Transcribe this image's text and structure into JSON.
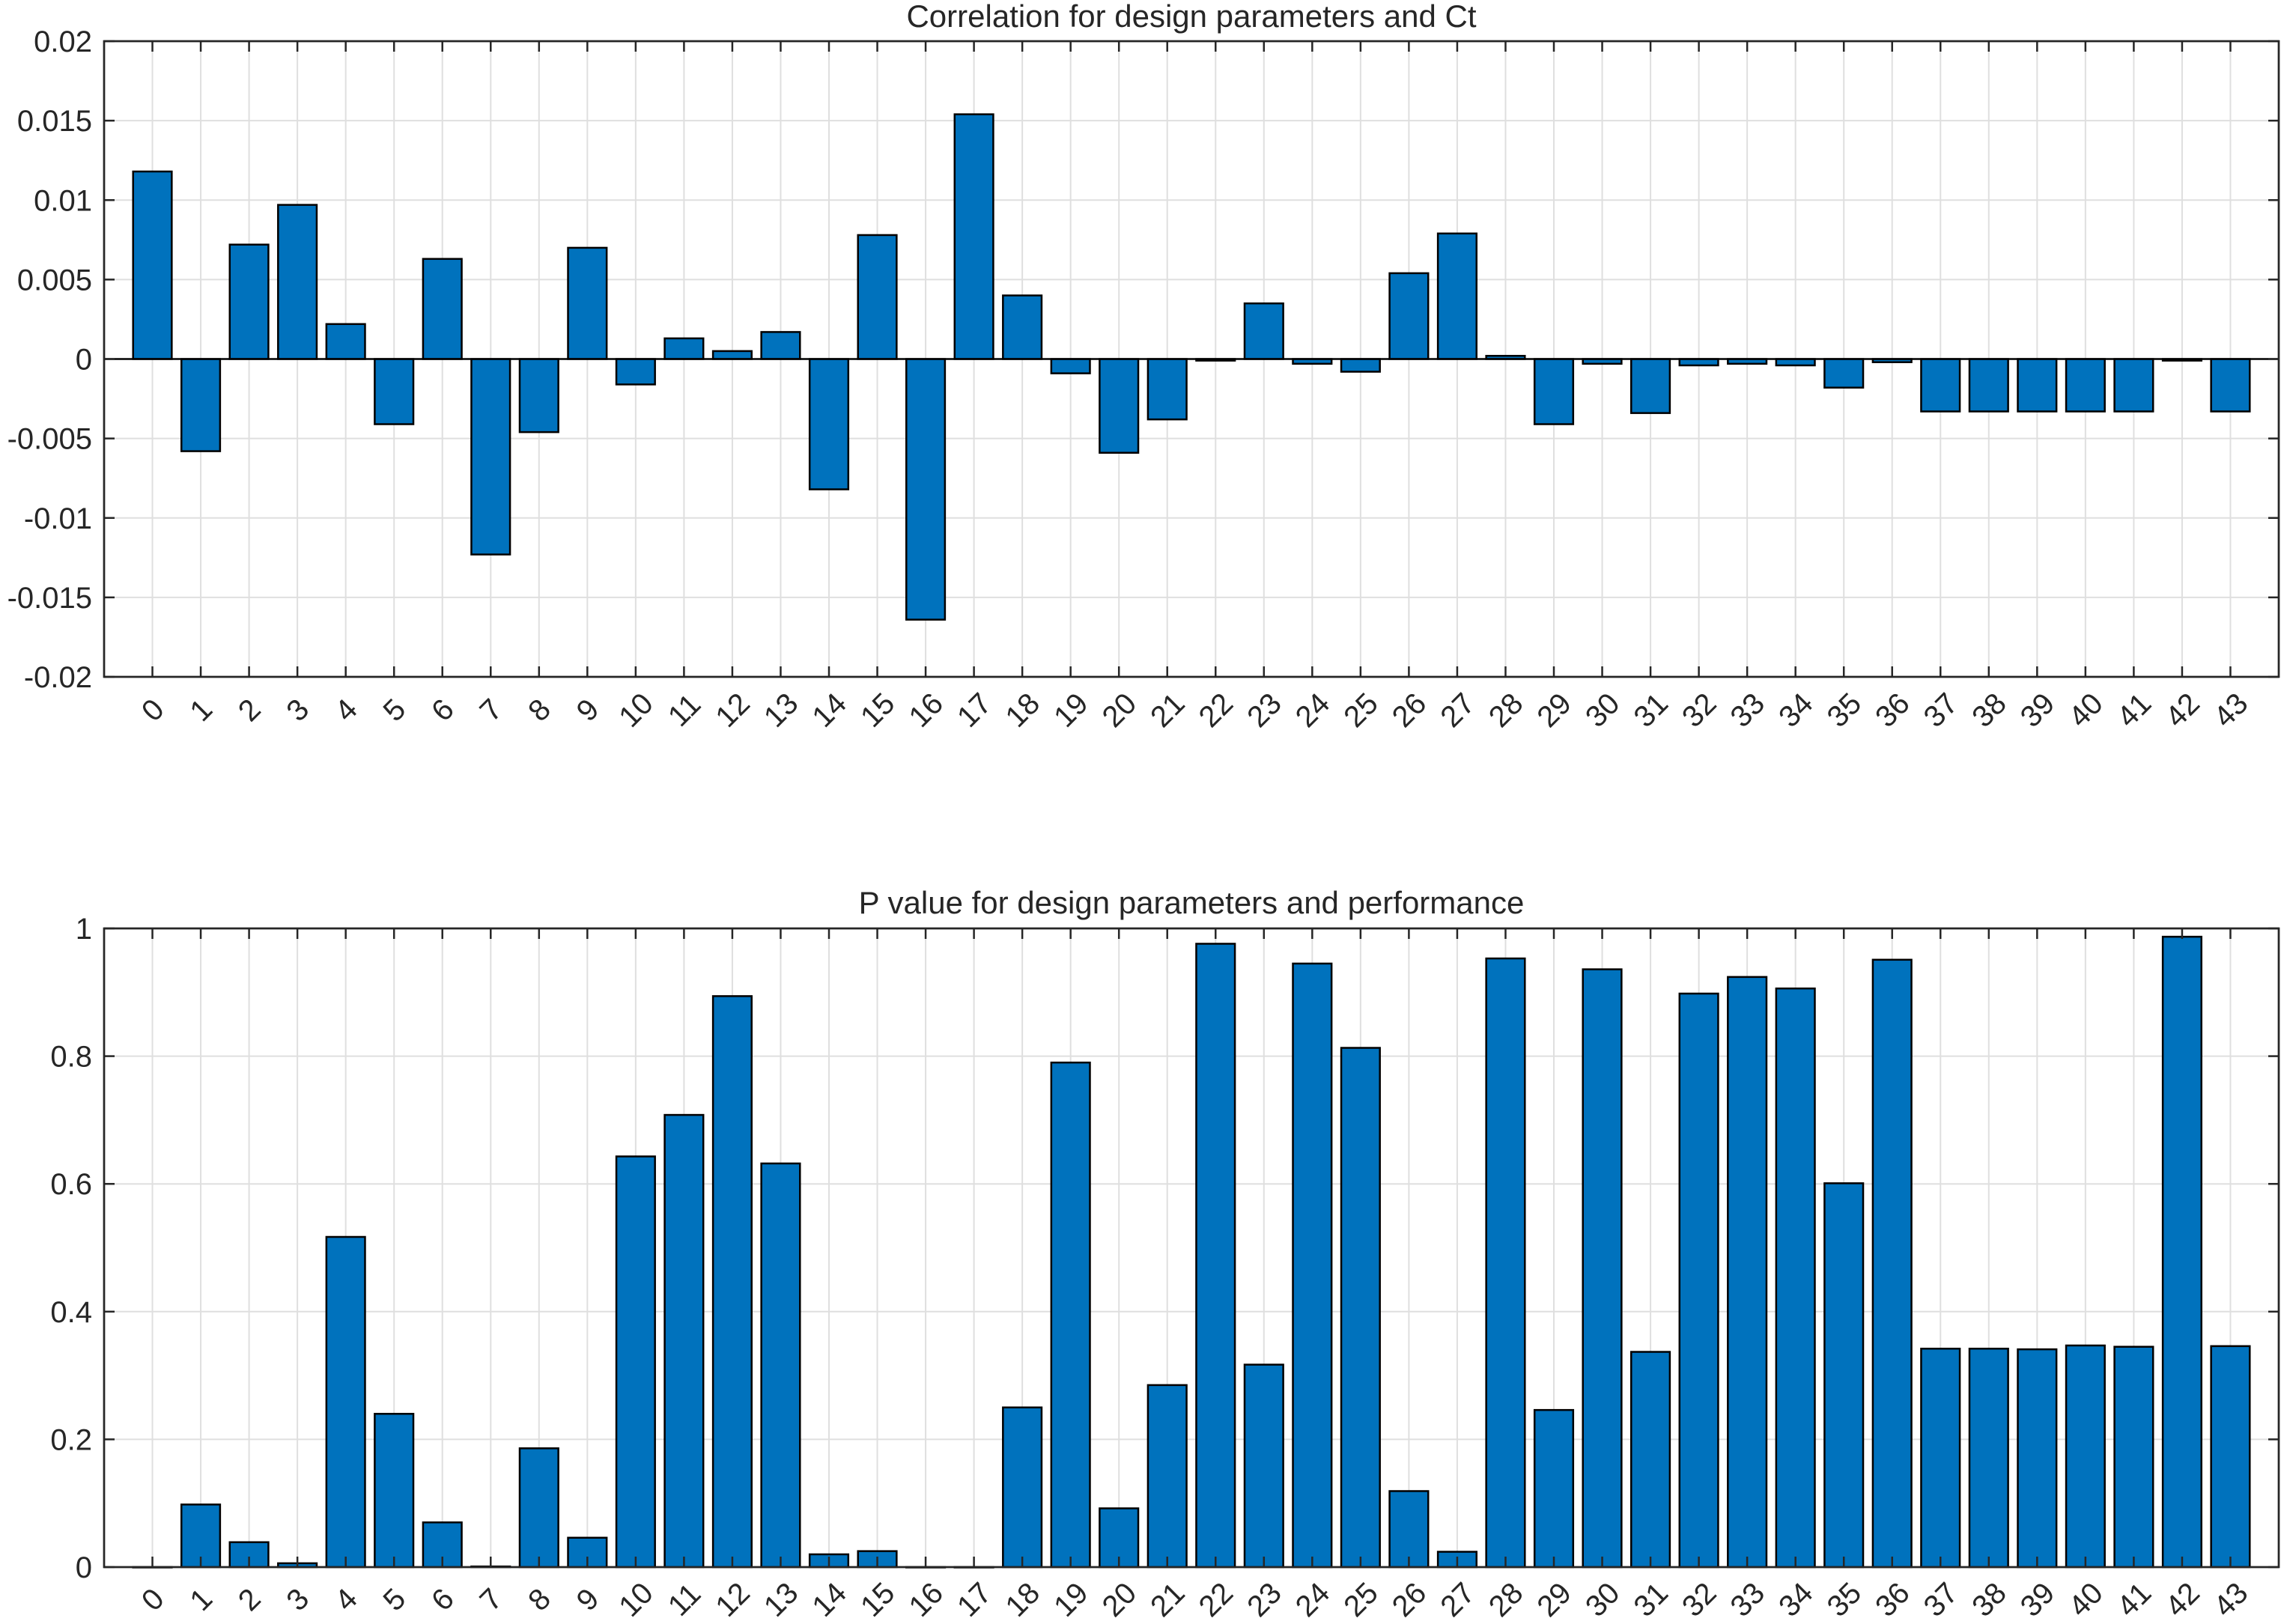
{
  "chart_data": [
    {
      "type": "bar",
      "title": "Correlation for design parameters and Ct",
      "xlabel": "",
      "ylabel": "",
      "ylim": [
        -0.02,
        0.02
      ],
      "yticks": [
        -0.02,
        -0.015,
        -0.01,
        -0.005,
        0,
        0.005,
        0.01,
        0.015,
        0.02
      ],
      "ytick_labels": [
        "-0.02",
        "-0.015",
        "-0.01",
        "-0.005",
        "0",
        "0.005",
        "0.01",
        "0.015",
        "0.02"
      ],
      "grid": true,
      "bar_color": "#0072BD",
      "categories": [
        "0",
        "1",
        "2",
        "3",
        "4",
        "5",
        "6",
        "7",
        "8",
        "9",
        "10",
        "11",
        "12",
        "13",
        "14",
        "15",
        "16",
        "17",
        "18",
        "19",
        "20",
        "21",
        "22",
        "23",
        "24",
        "25",
        "26",
        "27",
        "28",
        "29",
        "30",
        "31",
        "32",
        "33",
        "34",
        "35",
        "36",
        "37",
        "38",
        "39",
        "40",
        "41",
        "42",
        "43"
      ],
      "values": [
        0.0118,
        -0.0058,
        0.0072,
        0.0097,
        0.0022,
        -0.0041,
        0.0063,
        -0.0123,
        -0.0046,
        0.007,
        -0.0016,
        0.0013,
        0.0005,
        0.0017,
        -0.0082,
        0.0078,
        -0.0164,
        0.0154,
        0.004,
        -0.0009,
        -0.0059,
        -0.0038,
        -0.0001,
        0.0035,
        -0.0003,
        -0.0008,
        0.0054,
        0.0079,
        0.0002,
        -0.0041,
        -0.0003,
        -0.0034,
        -0.0004,
        -0.0003,
        -0.0004,
        -0.0018,
        -0.0002,
        -0.0033,
        -0.0033,
        -0.0033,
        -0.0033,
        -0.0033,
        -0.0001,
        -0.0033
      ]
    },
    {
      "type": "bar",
      "title": "P value for design parameters and performance",
      "xlabel": "",
      "ylabel": "",
      "ylim": [
        0,
        1
      ],
      "yticks": [
        0,
        0.2,
        0.4,
        0.6,
        0.8,
        1
      ],
      "ytick_labels": [
        "0",
        "0.2",
        "0.4",
        "0.6",
        "0.8",
        "1"
      ],
      "grid": true,
      "bar_color": "#0072BD",
      "categories": [
        "0",
        "1",
        "2",
        "3",
        "4",
        "5",
        "6",
        "7",
        "8",
        "9",
        "10",
        "11",
        "12",
        "13",
        "14",
        "15",
        "16",
        "17",
        "18",
        "19",
        "20",
        "21",
        "22",
        "23",
        "24",
        "25",
        "26",
        "27",
        "28",
        "29",
        "30",
        "31",
        "32",
        "33",
        "34",
        "35",
        "36",
        "37",
        "38",
        "39",
        "40",
        "41",
        "42",
        "43"
      ],
      "values": [
        0.0,
        0.098,
        0.039,
        0.006,
        0.517,
        0.24,
        0.07,
        0.001,
        0.186,
        0.046,
        0.643,
        0.708,
        0.894,
        0.632,
        0.02,
        0.025,
        0.0,
        0.0,
        0.25,
        0.79,
        0.092,
        0.285,
        0.976,
        0.317,
        0.945,
        0.813,
        0.119,
        0.024,
        0.953,
        0.246,
        0.936,
        0.337,
        0.898,
        0.924,
        0.906,
        0.601,
        0.951,
        0.342,
        0.342,
        0.341,
        0.347,
        0.345,
        0.987,
        0.346
      ]
    }
  ]
}
